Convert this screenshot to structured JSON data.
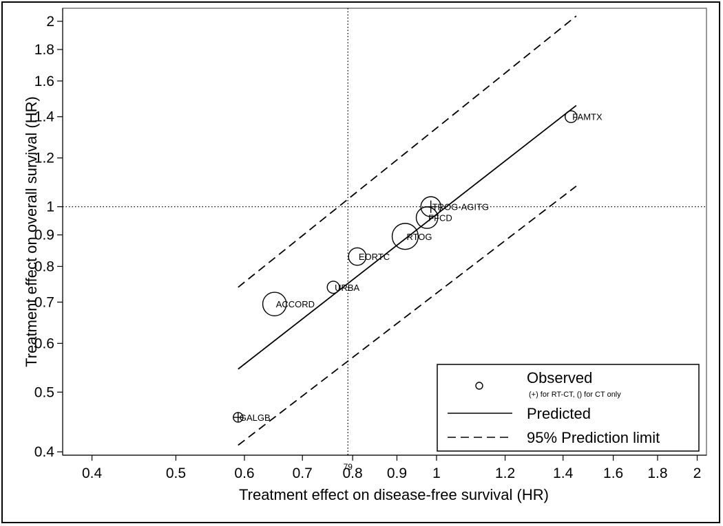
{
  "chart_data": {
    "type": "scatter",
    "xlabel": "Treatment effect on disease-free survival (HR)",
    "ylabel": "Treatment effect on overall survival (HR)",
    "x_scale": "log",
    "y_scale": "log",
    "xlim": [
      0.37,
      2.05
    ],
    "ylim": [
      0.395,
      2.1
    ],
    "x_ticks": [
      0.4,
      0.5,
      0.6,
      0.7,
      0.8,
      0.9,
      1,
      1.2,
      1.4,
      1.6,
      1.8,
      2
    ],
    "x_tick_labels": [
      "0.4",
      "0.5",
      "0.6",
      "0.7",
      "0.8",
      "0.9",
      "1",
      "1.2",
      "1.4",
      "1.6",
      "1.8",
      "2"
    ],
    "y_ticks": [
      0.4,
      0.5,
      0.6,
      0.7,
      0.8,
      0.9,
      1,
      1.2,
      1.4,
      1.6,
      1.8,
      2
    ],
    "y_tick_labels": [
      "0.4",
      "0.5",
      "0.6",
      "0.7",
      "0.8",
      "0.9",
      "1",
      "1.2",
      "1.4",
      "1.6",
      "1.8",
      "2"
    ],
    "reference_lines": {
      "x": 0.79,
      "y": 1,
      "x_label": "79"
    },
    "points": [
      {
        "name": "GALGB",
        "x": 0.59,
        "y": 0.455,
        "weight": 1,
        "marker": "plus"
      },
      {
        "name": "ACCORD",
        "x": 0.65,
        "y": 0.695,
        "weight": 6,
        "marker": "circle"
      },
      {
        "name": "URBA",
        "x": 0.76,
        "y": 0.74,
        "weight": 1.6,
        "marker": "circle"
      },
      {
        "name": "EORTC",
        "x": 0.81,
        "y": 0.83,
        "weight": 3.3,
        "marker": "circle"
      },
      {
        "name": "RTOG",
        "x": 0.92,
        "y": 0.895,
        "weight": 7.3,
        "marker": "circle"
      },
      {
        "name": "FFCD",
        "x": 0.975,
        "y": 0.96,
        "weight": 5,
        "marker": "circle"
      },
      {
        "name": "TROG-AGITG",
        "x": 0.985,
        "y": 1.0,
        "weight": 4.3,
        "marker": "plus"
      },
      {
        "name": "FAMTX",
        "x": 1.43,
        "y": 1.4,
        "weight": 1.5,
        "marker": "circle"
      }
    ],
    "predicted_line": {
      "x": [
        0.59,
        1.45
      ],
      "y": [
        0.545,
        1.46
      ]
    },
    "prediction_limits": {
      "upper": {
        "x": [
          0.59,
          1.45
        ],
        "y": [
          0.74,
          2.04
        ]
      },
      "lower": {
        "x": [
          0.59,
          1.45
        ],
        "y": [
          0.41,
          1.08
        ]
      }
    },
    "legend": {
      "position": "bottom-right",
      "entries": [
        {
          "label": "Observed",
          "note": "(+)  for RT-CT, () for CT only",
          "style": "circle"
        },
        {
          "label": "Predicted",
          "style": "solid"
        },
        {
          "label": "95% Prediction limit",
          "style": "dashed"
        }
      ]
    },
    "grid": false
  }
}
